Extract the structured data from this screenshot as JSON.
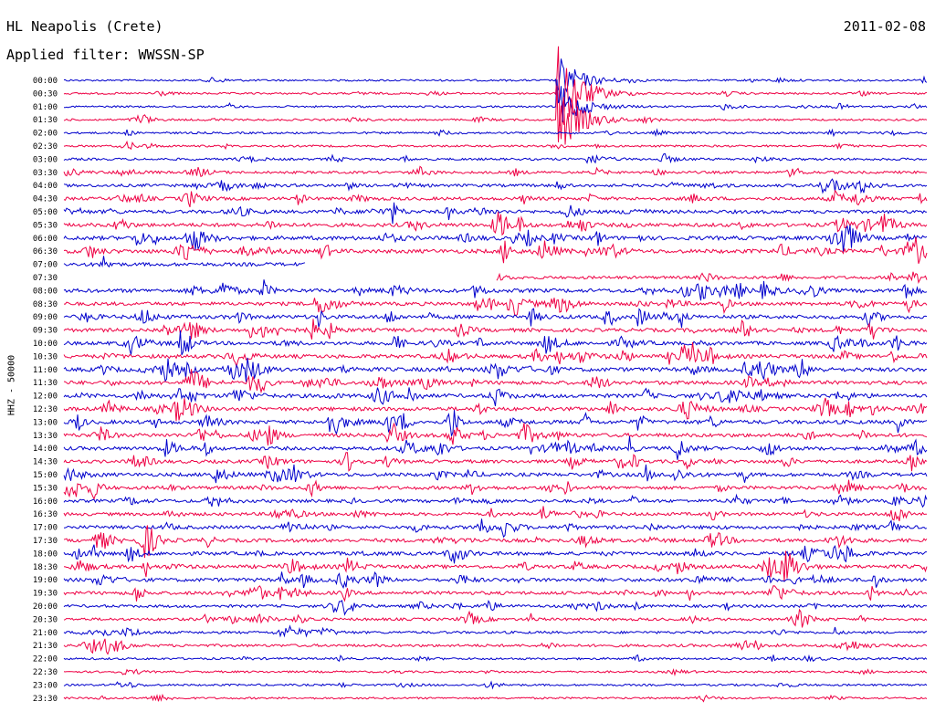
{
  "header": {
    "station": "HL Neapolis (Crete)",
    "filter": "Applied filter: WWSSN-SP",
    "date": "2011-02-08"
  },
  "chart_data": {
    "type": "seismogram-helicorder",
    "title": "HL Neapolis (Crete)",
    "subtitle": "Applied filter: WWSSN-SP",
    "date": "2011-02-08",
    "ylabel": "HHZ - 50000",
    "trace_colors": [
      "#0000cc",
      "#ee0044"
    ],
    "time_labels": [
      "00:00",
      "00:30",
      "01:00",
      "01:30",
      "02:00",
      "02:30",
      "03:00",
      "03:30",
      "04:00",
      "04:30",
      "05:00",
      "05:30",
      "06:00",
      "06:30",
      "07:00",
      "07:30",
      "08:00",
      "08:30",
      "09:00",
      "09:30",
      "10:00",
      "10:30",
      "11:00",
      "11:30",
      "12:00",
      "12:30",
      "13:00",
      "13:30",
      "14:00",
      "14:30",
      "15:00",
      "15:30",
      "16:00",
      "16:30",
      "17:00",
      "17:30",
      "18:00",
      "18:30",
      "19:00",
      "19:30",
      "20:00",
      "20:30",
      "21:00",
      "21:30",
      "22:00",
      "22:30",
      "23:00",
      "23:30"
    ],
    "row_activity": [
      0.08,
      0.1,
      0.1,
      0.12,
      0.14,
      0.12,
      0.2,
      0.25,
      0.35,
      0.4,
      0.45,
      0.55,
      0.6,
      0.6,
      0.5,
      0.35,
      0.55,
      0.5,
      0.55,
      0.5,
      0.5,
      0.55,
      0.6,
      0.55,
      0.55,
      0.55,
      0.55,
      0.55,
      0.5,
      0.45,
      0.5,
      0.45,
      0.4,
      0.4,
      0.45,
      0.5,
      0.5,
      0.5,
      0.5,
      0.45,
      0.3,
      0.3,
      0.25,
      0.3,
      0.15,
      0.12,
      0.12,
      0.1
    ],
    "gaps": [
      {
        "row": 14,
        "start": 0.28,
        "end": 1.0
      },
      {
        "row": 15,
        "start": 0.0,
        "end": 0.5
      }
    ],
    "major_event": {
      "row": 1,
      "position": 0.57,
      "label_time": "00:30"
    }
  }
}
